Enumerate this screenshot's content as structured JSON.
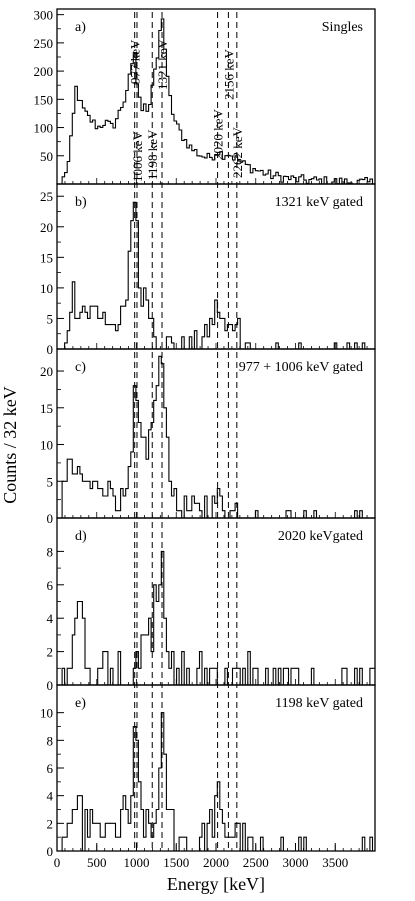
{
  "chart_data": {
    "type": "histogram-stack",
    "xlabel": "Energy [keV]",
    "ylabel": "Counts / 32 keV",
    "xlim": [
      0,
      4000
    ],
    "x_ticks": [
      0,
      500,
      1000,
      1500,
      2000,
      2500,
      3000,
      3500
    ],
    "bin_width": 32,
    "gamma_lines_keV": [
      977,
      1006,
      1198,
      1321,
      2020,
      2156,
      2262
    ],
    "panels": [
      {
        "letter": "a)",
        "label": "Singles",
        "ylim": [
          0,
          310
        ],
        "y_ticks": [
          50,
          100,
          150,
          200,
          250,
          300
        ],
        "annotations": [
          "977 keV",
          "1006 keV",
          "1198 keV",
          "1321 keV",
          "2020 keV",
          "2156 keV",
          "2262 keV"
        ],
        "keypoints": [
          [
            80,
            10
          ],
          [
            150,
            40
          ],
          [
            200,
            110
          ],
          [
            240,
            170
          ],
          [
            280,
            150
          ],
          [
            320,
            135
          ],
          [
            380,
            120
          ],
          [
            450,
            110
          ],
          [
            520,
            100
          ],
          [
            600,
            110
          ],
          [
            700,
            100
          ],
          [
            780,
            125
          ],
          [
            850,
            150
          ],
          [
            900,
            180
          ],
          [
            950,
            210
          ],
          [
            977,
            235
          ],
          [
            1010,
            175
          ],
          [
            1060,
            130
          ],
          [
            1100,
            150
          ],
          [
            1150,
            125
          ],
          [
            1200,
            175
          ],
          [
            1240,
            200
          ],
          [
            1280,
            240
          ],
          [
            1321,
            310
          ],
          [
            1360,
            240
          ],
          [
            1400,
            170
          ],
          [
            1450,
            130
          ],
          [
            1500,
            105
          ],
          [
            1600,
            80
          ],
          [
            1700,
            62
          ],
          [
            1800,
            52
          ],
          [
            1900,
            46
          ],
          [
            1960,
            50
          ],
          [
            2020,
            60
          ],
          [
            2080,
            52
          ],
          [
            2156,
            55
          ],
          [
            2220,
            48
          ],
          [
            2262,
            44
          ],
          [
            2350,
            35
          ],
          [
            2500,
            25
          ],
          [
            2700,
            15
          ],
          [
            3000,
            8
          ],
          [
            3500,
            4
          ],
          [
            4000,
            2
          ]
        ],
        "noise": 9
      },
      {
        "letter": "b)",
        "label": "1321 keV gated",
        "ylim": [
          0,
          27
        ],
        "y_ticks": [
          0,
          5,
          10,
          15,
          20,
          25
        ],
        "keypoints": [
          [
            80,
            0
          ],
          [
            120,
            2
          ],
          [
            160,
            3
          ],
          [
            180,
            6
          ],
          [
            200,
            13
          ],
          [
            230,
            4
          ],
          [
            300,
            5
          ],
          [
            400,
            6
          ],
          [
            460,
            8
          ],
          [
            500,
            6
          ],
          [
            580,
            5
          ],
          [
            640,
            4
          ],
          [
            700,
            5
          ],
          [
            800,
            4
          ],
          [
            880,
            8
          ],
          [
            930,
            18
          ],
          [
            977,
            25
          ],
          [
            1006,
            22
          ],
          [
            1040,
            10
          ],
          [
            1100,
            8
          ],
          [
            1140,
            9
          ],
          [
            1190,
            5
          ],
          [
            1230,
            3
          ],
          [
            1280,
            1
          ],
          [
            1330,
            1
          ],
          [
            1400,
            1
          ],
          [
            1500,
            0
          ],
          [
            1700,
            1
          ],
          [
            1800,
            1
          ],
          [
            1900,
            3
          ],
          [
            1960,
            5
          ],
          [
            2020,
            7
          ],
          [
            2060,
            5
          ],
          [
            2120,
            3
          ],
          [
            2200,
            3
          ],
          [
            2262,
            6
          ],
          [
            2320,
            2
          ],
          [
            2400,
            1
          ],
          [
            2500,
            0
          ],
          [
            2700,
            1
          ],
          [
            3000,
            1
          ],
          [
            3200,
            1
          ],
          [
            3500,
            0
          ],
          [
            3900,
            0
          ]
        ],
        "noise": 2,
        "sparse_from": 2450
      },
      {
        "letter": "c)",
        "label": "977 + 1006 keV gated",
        "ylim": [
          0,
          23
        ],
        "y_ticks": [
          0,
          5,
          10,
          15,
          20
        ],
        "keypoints": [
          [
            80,
            6
          ],
          [
            150,
            7
          ],
          [
            250,
            6
          ],
          [
            350,
            5
          ],
          [
            450,
            4
          ],
          [
            550,
            5
          ],
          [
            650,
            4
          ],
          [
            760,
            3
          ],
          [
            850,
            2
          ],
          [
            900,
            4
          ],
          [
            950,
            9
          ],
          [
            977,
            17
          ],
          [
            1006,
            15
          ],
          [
            1050,
            10
          ],
          [
            1100,
            11
          ],
          [
            1150,
            9
          ],
          [
            1198,
            13
          ],
          [
            1240,
            16
          ],
          [
            1280,
            19
          ],
          [
            1321,
            22
          ],
          [
            1360,
            17
          ],
          [
            1400,
            9
          ],
          [
            1450,
            4
          ],
          [
            1500,
            2
          ],
          [
            1600,
            1
          ],
          [
            1700,
            1
          ],
          [
            1800,
            1
          ],
          [
            1900,
            2
          ],
          [
            2000,
            2
          ],
          [
            2020,
            3
          ],
          [
            2100,
            2
          ],
          [
            2200,
            1
          ],
          [
            2300,
            1
          ],
          [
            2450,
            1
          ],
          [
            2600,
            0
          ],
          [
            3000,
            0
          ],
          [
            3200,
            1
          ],
          [
            3500,
            0
          ],
          [
            3900,
            0
          ]
        ],
        "noise": 1.8,
        "sparse_from": 2500
      },
      {
        "letter": "d)",
        "label": "2020 keVgated",
        "ylim": [
          0,
          10
        ],
        "y_ticks": [
          0,
          2,
          4,
          6,
          8
        ],
        "keypoints": [
          [
            80,
            0
          ],
          [
            150,
            0
          ],
          [
            200,
            2
          ],
          [
            250,
            3
          ],
          [
            300,
            6
          ],
          [
            350,
            2
          ],
          [
            400,
            1
          ],
          [
            500,
            0
          ],
          [
            600,
            1
          ],
          [
            700,
            0
          ],
          [
            800,
            1
          ],
          [
            900,
            0
          ],
          [
            950,
            1
          ],
          [
            1000,
            2
          ],
          [
            1050,
            1
          ],
          [
            1100,
            3
          ],
          [
            1150,
            4
          ],
          [
            1198,
            3
          ],
          [
            1240,
            6
          ],
          [
            1290,
            6
          ],
          [
            1321,
            9
          ],
          [
            1360,
            5
          ],
          [
            1400,
            2
          ],
          [
            1450,
            1
          ],
          [
            1500,
            0
          ],
          [
            1600,
            1
          ],
          [
            1700,
            0
          ],
          [
            1800,
            1
          ],
          [
            1900,
            0
          ],
          [
            2000,
            1
          ],
          [
            2100,
            0
          ],
          [
            2200,
            1
          ],
          [
            2300,
            0
          ],
          [
            2450,
            1
          ],
          [
            2550,
            0
          ],
          [
            3900,
            0
          ]
        ],
        "noise": 1.2
      },
      {
        "letter": "e)",
        "label": "1198 keV gated",
        "ylim": [
          0,
          12
        ],
        "y_ticks": [
          0,
          2,
          4,
          6,
          8,
          10
        ],
        "keypoints": [
          [
            80,
            0
          ],
          [
            120,
            2
          ],
          [
            160,
            1
          ],
          [
            200,
            3
          ],
          [
            250,
            2
          ],
          [
            300,
            3
          ],
          [
            350,
            1
          ],
          [
            420,
            3
          ],
          [
            480,
            1
          ],
          [
            550,
            2
          ],
          [
            620,
            1
          ],
          [
            700,
            2
          ],
          [
            780,
            1
          ],
          [
            850,
            3
          ],
          [
            920,
            2
          ],
          [
            960,
            6
          ],
          [
            977,
            8
          ],
          [
            1006,
            7
          ],
          [
            1050,
            4
          ],
          [
            1100,
            2
          ],
          [
            1150,
            2
          ],
          [
            1198,
            1
          ],
          [
            1250,
            3
          ],
          [
            1300,
            6
          ],
          [
            1321,
            10
          ],
          [
            1360,
            6
          ],
          [
            1400,
            3
          ],
          [
            1450,
            2
          ],
          [
            1500,
            1
          ],
          [
            1600,
            1
          ],
          [
            1700,
            0
          ],
          [
            1800,
            1
          ],
          [
            1900,
            1
          ],
          [
            1960,
            2
          ],
          [
            2020,
            4
          ],
          [
            2060,
            2
          ],
          [
            2100,
            1
          ],
          [
            2156,
            1
          ],
          [
            2262,
            2
          ],
          [
            2320,
            1
          ],
          [
            2400,
            0
          ],
          [
            2800,
            1
          ],
          [
            2900,
            0
          ],
          [
            3000,
            1
          ],
          [
            3100,
            0
          ],
          [
            3650,
            1
          ],
          [
            3700,
            0
          ],
          [
            3950,
            0
          ]
        ],
        "noise": 1.3,
        "sparse_from": 2450
      }
    ]
  }
}
